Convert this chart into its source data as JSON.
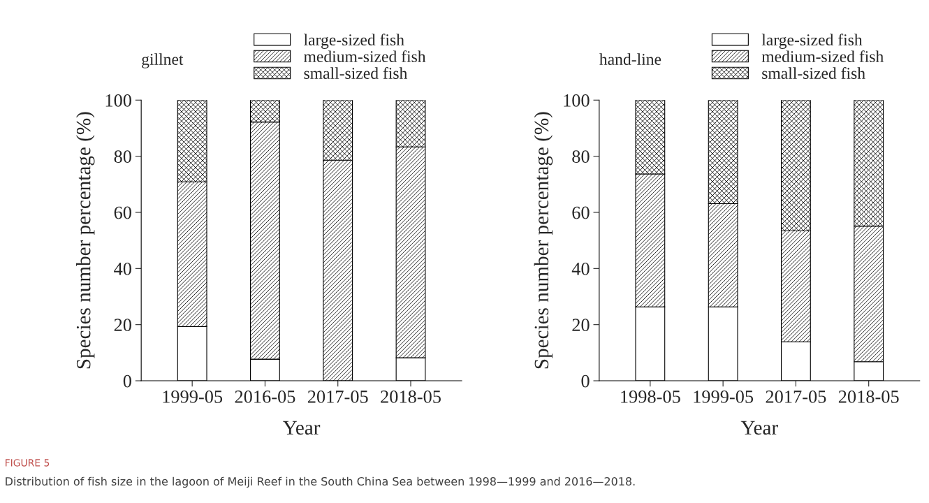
{
  "chart_data": [
    {
      "type": "bar",
      "title": "gillnet",
      "xlabel": "Year",
      "ylabel": "Species number percentage (%)",
      "categories": [
        "1999-05",
        "2016-05",
        "2017-05",
        "2018-05"
      ],
      "stacked": true,
      "ylim": [
        0,
        100
      ],
      "yticks": [
        0,
        20,
        40,
        60,
        80,
        100
      ],
      "legend": "top",
      "grid": false,
      "series": [
        {
          "name": "large-sized fish",
          "color": "#ffffff",
          "values": [
            19.3,
            7.7,
            0,
            8.2
          ]
        },
        {
          "name": "medium-sized fish",
          "color": "#000000",
          "values": [
            51.6,
            84.5,
            78.6,
            75.1
          ]
        },
        {
          "name": "small-sized fish",
          "color": "#000000",
          "values": [
            29.1,
            7.8,
            21.4,
            16.7
          ]
        }
      ],
      "annotations": [
        "FIGURE 5",
        "Distribution of fish size in the lagoon of Meiji Reef in the South China Sea between 1998—1999 and 2016—2018."
      ]
    },
    {
      "type": "bar",
      "title": "hand-line",
      "xlabel": "Year",
      "ylabel": "Species number percentage (%)",
      "categories": [
        "1998-05",
        "1999-05",
        "2017-05",
        "2018-05"
      ],
      "stacked": true,
      "ylim": [
        0,
        100
      ],
      "yticks": [
        0,
        20,
        40,
        60,
        80,
        100
      ],
      "legend": "top",
      "grid": false,
      "series": [
        {
          "name": "large-sized fish",
          "color": "#ffffff",
          "values": [
            26.3,
            26.3,
            13.9,
            6.8
          ]
        },
        {
          "name": "medium-sized fish",
          "color": "#000000",
          "values": [
            47.4,
            36.8,
            39.5,
            48.3
          ]
        },
        {
          "name": "small-sized fish",
          "color": "#000000",
          "values": [
            26.3,
            36.9,
            46.6,
            44.9
          ]
        }
      ]
    }
  ]
}
